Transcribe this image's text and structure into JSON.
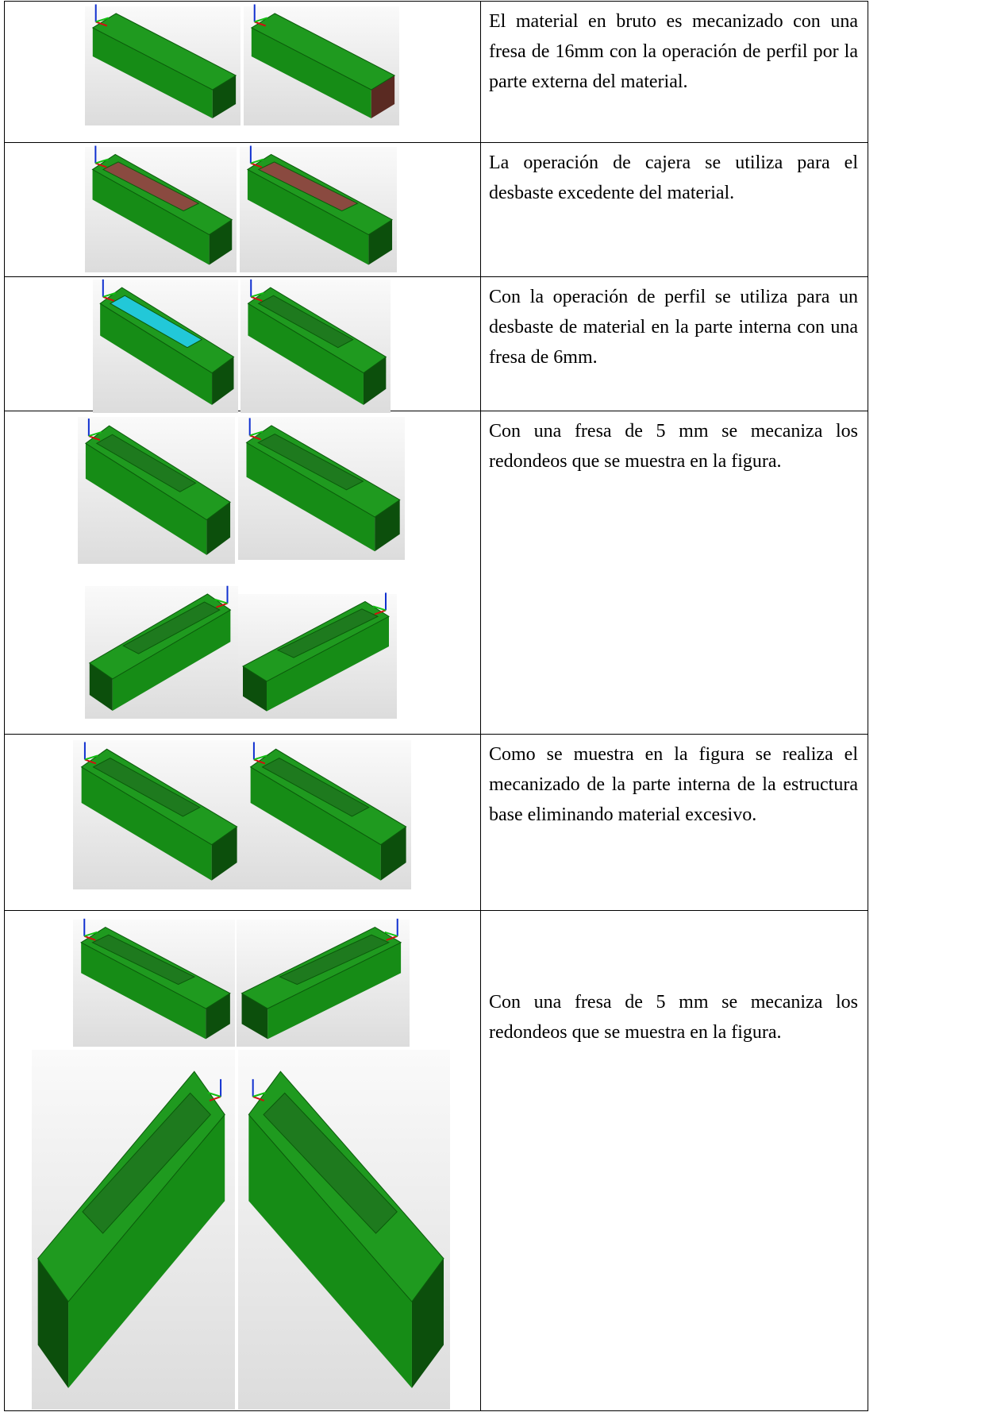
{
  "rows": [
    {
      "text": "El material en bruto es mecanizado con una fresa de 16mm con la operación de perfil por la parte externa del material."
    },
    {
      "text": "La operación de cajera se utiliza para el desbaste excedente del material."
    },
    {
      "text": "Con la operación de perfil se utiliza para un desbaste de material en la parte interna con una fresa de 6mm."
    },
    {
      "text": "Con una fresa de 5 mm se mecaniza los redondeos que se muestra en la figura."
    },
    {
      "text": "Como se muestra en la figura se realiza el mecanizado de la parte interna de la estructura base eliminando material excesivo."
    },
    {
      "text": "Con una fresa de 5 mm se mecaniza los redondeos que se muestra en la figura."
    }
  ]
}
